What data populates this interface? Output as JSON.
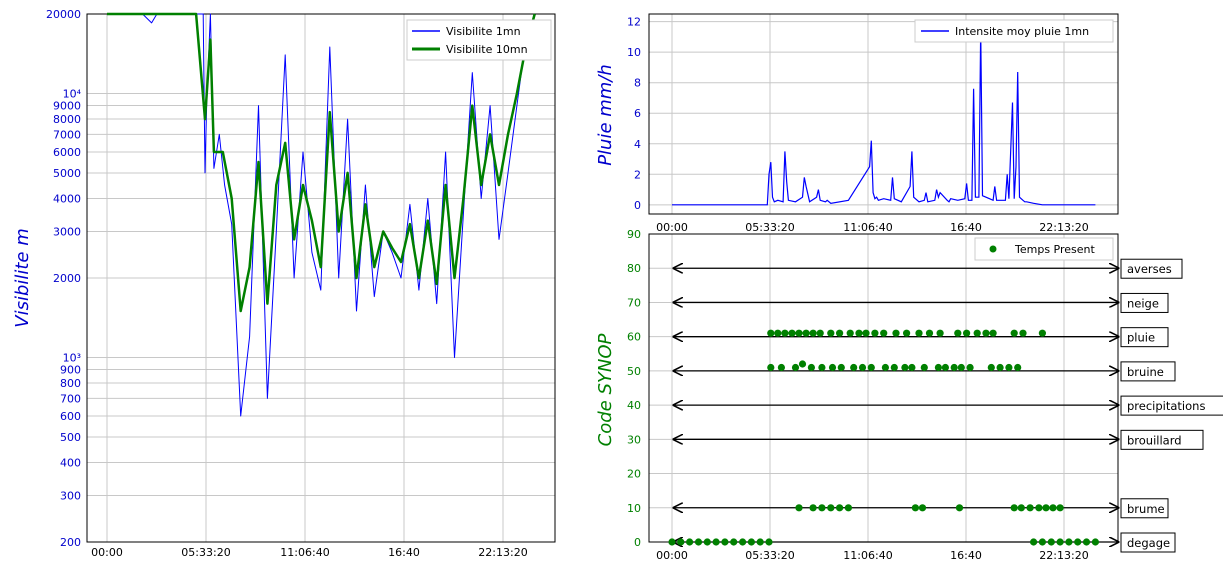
{
  "chart_data": [
    {
      "type": "line",
      "ylabel": "Visibilite  m",
      "yscale": "log",
      "ylim": [
        200,
        20000
      ],
      "ytick_labels": [
        {
          "v": 200,
          "t": "200"
        },
        {
          "v": 300,
          "t": "300"
        },
        {
          "v": 400,
          "t": "400"
        },
        {
          "v": 500,
          "t": "500"
        },
        {
          "v": 600,
          "t": "600"
        },
        {
          "v": 700,
          "t": "700"
        },
        {
          "v": 800,
          "t": "800"
        },
        {
          "v": 900,
          "t": "900"
        },
        {
          "v": 1000,
          "t": "10³"
        },
        {
          "v": 2000,
          "t": "2000"
        },
        {
          "v": 3000,
          "t": "3000"
        },
        {
          "v": 4000,
          "t": "4000"
        },
        {
          "v": 5000,
          "t": "5000"
        },
        {
          "v": 6000,
          "t": "6000"
        },
        {
          "v": 7000,
          "t": "7000"
        },
        {
          "v": 8000,
          "t": "8000"
        },
        {
          "v": 9000,
          "t": "9000"
        },
        {
          "v": 10000,
          "t": "10⁴"
        },
        {
          "v": 20000,
          "t": "20000"
        }
      ],
      "xticks": [
        "00:00",
        "05:33:20",
        "11:06:40",
        "16:40",
        "22:13:20"
      ],
      "legend": {
        "placement": "top-right",
        "entries": [
          "Visibilite 1mn",
          "Visibilite 10mn"
        ]
      },
      "grid": true,
      "series": [
        {
          "name": "Visibilite 1mn",
          "color": "#0000ff",
          "x": [
            0,
            1,
            2,
            2.5,
            2.8,
            3,
            4,
            5,
            5.4,
            5.5,
            5.6,
            5.8,
            6,
            6.3,
            6.6,
            7,
            7.5,
            8,
            8.5,
            9,
            9.5,
            10,
            10.5,
            11,
            11.5,
            12,
            12.5,
            13,
            13.5,
            14,
            14.5,
            15,
            15.5,
            16,
            16.5,
            17,
            17.5,
            18,
            18.5,
            19,
            19.5,
            20,
            20.5,
            21,
            21.5,
            22,
            22.5,
            23,
            23.5,
            24
          ],
          "values": [
            20000,
            20000,
            20000,
            18500,
            20000,
            20000,
            20000,
            20000,
            20000,
            5000,
            9500,
            20000,
            5200,
            7000,
            4500,
            3200,
            600,
            1200,
            9000,
            700,
            3000,
            14000,
            2000,
            6000,
            2500,
            1800,
            15000,
            2000,
            8000,
            1500,
            4500,
            1700,
            3000,
            2500,
            2000,
            3800,
            1800,
            4000,
            1600,
            6000,
            1000,
            3500,
            12000,
            4000,
            9000,
            2800,
            5000,
            9000,
            16000,
            20000
          ]
        },
        {
          "name": "Visibilite 10mn",
          "color": "#008000",
          "x": [
            0,
            1,
            2,
            3,
            4,
            5,
            5.5,
            5.8,
            6,
            6.5,
            7,
            7.5,
            8,
            8.5,
            9,
            9.5,
            10,
            10.5,
            11,
            11.5,
            12,
            12.5,
            13,
            13.5,
            14,
            14.5,
            15,
            15.5,
            16,
            16.5,
            17,
            17.5,
            18,
            18.5,
            19,
            19.5,
            20,
            20.5,
            21,
            21.5,
            22,
            22.5,
            23,
            23.5,
            24
          ],
          "values": [
            20000,
            20000,
            20000,
            20000,
            20000,
            20000,
            8000,
            16000,
            6000,
            6000,
            4000,
            1500,
            2200,
            5500,
            1600,
            4500,
            6500,
            2800,
            4500,
            3300,
            2200,
            8500,
            3000,
            5000,
            2000,
            3800,
            2200,
            3000,
            2600,
            2300,
            3200,
            2000,
            3300,
            1900,
            4500,
            2000,
            4000,
            9000,
            4500,
            7000,
            4500,
            7000,
            10000,
            15000,
            20000
          ]
        }
      ]
    },
    {
      "type": "line",
      "ylabel": "Pluie  mm/h",
      "ylim": [
        0,
        12.5
      ],
      "yticks": [
        0,
        2,
        4,
        6,
        8,
        10,
        12
      ],
      "xticks": [
        "00:00",
        "05:33:20",
        "11:06:40",
        "16:40",
        "22:13:20"
      ],
      "legend": {
        "placement": "top-right",
        "entries": [
          "Intensite moy pluie 1mn"
        ]
      },
      "grid": true,
      "series": [
        {
          "name": "Intensite moy pluie 1mn",
          "color": "#0000ff",
          "x": [
            0,
            5.4,
            5.5,
            5.6,
            5.7,
            5.8,
            6,
            6.3,
            6.4,
            6.5,
            6.6,
            7,
            7.4,
            7.5,
            7.6,
            7.8,
            8.2,
            8.3,
            8.4,
            8.7,
            8.8,
            9,
            10,
            11.2,
            11.3,
            11.4,
            11.5,
            11.6,
            11.7,
            12,
            12.4,
            12.5,
            12.6,
            13,
            13.5,
            13.6,
            13.7,
            14,
            14.3,
            14.4,
            14.5,
            14.9,
            15,
            15.1,
            15.2,
            15.6,
            15.7,
            15.8,
            16.2,
            16.6,
            16.7,
            16.8,
            17,
            17.1,
            17.2,
            17.4,
            17.5,
            17.6,
            18,
            18.2,
            18.3,
            18.4,
            18.9,
            19,
            19.1,
            19.3,
            19.4,
            19.5,
            19.6,
            19.7,
            19.9,
            20,
            20.1,
            20.5,
            21,
            22,
            23,
            24
          ],
          "values": [
            0,
            0,
            2,
            2.8,
            0.5,
            0.2,
            0.3,
            0.2,
            3.5,
            1.5,
            0.3,
            0.2,
            0.5,
            1.8,
            1.2,
            0.2,
            0.5,
            1.0,
            0.3,
            0.2,
            0.3,
            0.1,
            0.3,
            2.5,
            4.2,
            0.8,
            0.4,
            0.5,
            0.3,
            0.4,
            0.3,
            1.8,
            0.4,
            0.2,
            1.2,
            3.5,
            0.5,
            0.2,
            0.3,
            0.8,
            0.2,
            0.3,
            1.0,
            0.5,
            0.8,
            0.3,
            0.2,
            0.4,
            0.3,
            0.4,
            1.4,
            0.3,
            0.3,
            7.6,
            0.5,
            0.5,
            11.5,
            0.6,
            0.4,
            0.3,
            1.2,
            0.3,
            0.3,
            2.0,
            0.4,
            6.7,
            0.4,
            2.5,
            8.7,
            0.5,
            0.3,
            0.2,
            0.2,
            0.1,
            0,
            0,
            0,
            0
          ]
        }
      ]
    },
    {
      "type": "scatter",
      "ylabel": "Code  SYNOP",
      "ylim": [
        0,
        90
      ],
      "yticks": [
        0,
        10,
        20,
        30,
        40,
        50,
        60,
        70,
        80,
        90
      ],
      "xticks": [
        "00:00",
        "05:33:20",
        "11:06:40",
        "16:40",
        "22:13:20"
      ],
      "legend": {
        "placement": "top-right",
        "entries": [
          "Temps Present"
        ]
      },
      "grid": true,
      "annotations": [
        {
          "y": 80,
          "label": "averses"
        },
        {
          "y": 70,
          "label": "neige"
        },
        {
          "y": 60,
          "label": "pluie"
        },
        {
          "y": 50,
          "label": "bruine"
        },
        {
          "y": 40,
          "label": "precipitations"
        },
        {
          "y": 30,
          "label": "brouillard"
        },
        {
          "y": 10,
          "label": "brume"
        },
        {
          "y": 0,
          "label": "degage"
        }
      ],
      "series": [
        {
          "name": "Temps Present",
          "color": "#008000",
          "points": [
            [
              0,
              0
            ],
            [
              0.5,
              0
            ],
            [
              1,
              0
            ],
            [
              1.5,
              0
            ],
            [
              2,
              0
            ],
            [
              2.5,
              0
            ],
            [
              3,
              0
            ],
            [
              3.5,
              0
            ],
            [
              4,
              0
            ],
            [
              4.5,
              0
            ],
            [
              5,
              0
            ],
            [
              5.5,
              0
            ],
            [
              20.5,
              0
            ],
            [
              21,
              0
            ],
            [
              21.5,
              0
            ],
            [
              22,
              0
            ],
            [
              22.5,
              0
            ],
            [
              23,
              0
            ],
            [
              23.5,
              0
            ],
            [
              24,
              0
            ],
            [
              7.2,
              10
            ],
            [
              8,
              10
            ],
            [
              8.5,
              10
            ],
            [
              9,
              10
            ],
            [
              9.5,
              10
            ],
            [
              10,
              10
            ],
            [
              13.8,
              10
            ],
            [
              14.2,
              10
            ],
            [
              16.3,
              10
            ],
            [
              19.4,
              10
            ],
            [
              19.8,
              10
            ],
            [
              20.3,
              10
            ],
            [
              20.8,
              10
            ],
            [
              21.2,
              10
            ],
            [
              21.6,
              10
            ],
            [
              22.0,
              10
            ],
            [
              5.6,
              51
            ],
            [
              6.2,
              51
            ],
            [
              7,
              51
            ],
            [
              7.4,
              52
            ],
            [
              7.9,
              51
            ],
            [
              8.5,
              51
            ],
            [
              9.1,
              51
            ],
            [
              9.6,
              51
            ],
            [
              10.3,
              51
            ],
            [
              10.8,
              51
            ],
            [
              11.3,
              51
            ],
            [
              12.1,
              51
            ],
            [
              12.6,
              51
            ],
            [
              13.2,
              51
            ],
            [
              13.6,
              51
            ],
            [
              14.3,
              51
            ],
            [
              15.1,
              51
            ],
            [
              15.5,
              51
            ],
            [
              16.0,
              51
            ],
            [
              16.4,
              51
            ],
            [
              16.9,
              51
            ],
            [
              18.1,
              51
            ],
            [
              18.6,
              51
            ],
            [
              19.1,
              51
            ],
            [
              19.6,
              51
            ],
            [
              5.6,
              61
            ],
            [
              6.0,
              61
            ],
            [
              6.4,
              61
            ],
            [
              6.8,
              61
            ],
            [
              7.2,
              61
            ],
            [
              7.6,
              61
            ],
            [
              8.0,
              61
            ],
            [
              8.4,
              61
            ],
            [
              9.0,
              61
            ],
            [
              9.5,
              61
            ],
            [
              10.1,
              61
            ],
            [
              10.6,
              61
            ],
            [
              11.0,
              61
            ],
            [
              11.5,
              61
            ],
            [
              12.0,
              61
            ],
            [
              12.7,
              61
            ],
            [
              13.3,
              61
            ],
            [
              14.0,
              61
            ],
            [
              14.6,
              61
            ],
            [
              15.2,
              61
            ],
            [
              16.2,
              61
            ],
            [
              16.7,
              61
            ],
            [
              17.3,
              61
            ],
            [
              17.8,
              61
            ],
            [
              18.2,
              61
            ],
            [
              19.4,
              61
            ],
            [
              19.9,
              61
            ],
            [
              21.0,
              61
            ]
          ]
        }
      ]
    }
  ]
}
